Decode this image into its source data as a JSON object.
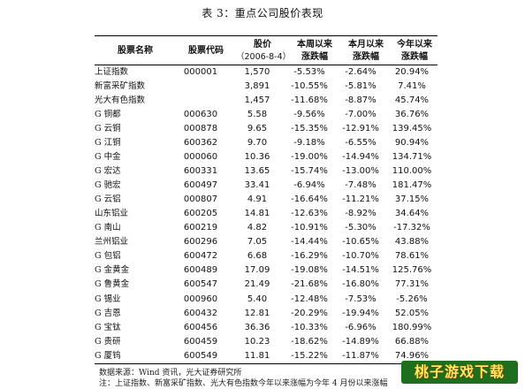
{
  "title": "表 3：重点公司股价表现",
  "headers": {
    "name": "股票名称",
    "code": "股票代码",
    "price_l1": "股价",
    "price_l2": "（2006-8-4）",
    "week_l1": "本周以来",
    "week_l2": "涨跌幅",
    "month_l1": "本月以来",
    "month_l2": "涨跌幅",
    "year_l1": "今年以来",
    "year_l2": "涨跌幅"
  },
  "rows": [
    {
      "name": "上证指数",
      "code": "000001",
      "price": "1,570",
      "week": "-5.53%",
      "month": "-2.64%",
      "year": "20.94%"
    },
    {
      "name": "新富采矿指数",
      "code": "",
      "price": "3,891",
      "week": "-10.55%",
      "month": "-5.81%",
      "year": "7.41%"
    },
    {
      "name": "光大有色指数",
      "code": "",
      "price": "1,457",
      "week": "-11.68%",
      "month": "-8.87%",
      "year": "45.74%"
    },
    {
      "name": "G 铜都",
      "code": "000630",
      "price": "5.58",
      "week": "-9.56%",
      "month": "-7.00%",
      "year": "36.76%"
    },
    {
      "name": "G 云铜",
      "code": "000878",
      "price": "9.65",
      "week": "-15.35%",
      "month": "-12.91%",
      "year": "139.45%"
    },
    {
      "name": "G 江铜",
      "code": "600362",
      "price": "9.70",
      "week": "-9.18%",
      "month": "-6.55%",
      "year": "90.94%"
    },
    {
      "name": "G 中金",
      "code": "000060",
      "price": "10.36",
      "week": "-19.00%",
      "month": "-14.94%",
      "year": "134.71%"
    },
    {
      "name": "G 宏达",
      "code": "600331",
      "price": "13.65",
      "week": "-15.74%",
      "month": "-13.00%",
      "year": "110.00%"
    },
    {
      "name": "G 驰宏",
      "code": "600497",
      "price": "33.41",
      "week": "-6.94%",
      "month": "-7.48%",
      "year": "181.47%"
    },
    {
      "name": "G 云铝",
      "code": "000807",
      "price": "4.91",
      "week": "-16.64%",
      "month": "-11.21%",
      "year": "37.15%"
    },
    {
      "name": "山东铝业",
      "code": "600205",
      "price": "14.81",
      "week": "-12.63%",
      "month": "-8.92%",
      "year": "34.64%"
    },
    {
      "name": "G 南山",
      "code": "600219",
      "price": "4.82",
      "week": "-10.91%",
      "month": "-5.30%",
      "year": "-17.32%"
    },
    {
      "name": "兰州铝业",
      "code": "600296",
      "price": "7.05",
      "week": "-14.44%",
      "month": "-10.65%",
      "year": "43.88%"
    },
    {
      "name": "G 包铝",
      "code": "600472",
      "price": "6.68",
      "week": "-16.29%",
      "month": "-10.70%",
      "year": "78.61%"
    },
    {
      "name": "G 金黄金",
      "code": "600489",
      "price": "17.09",
      "week": "-19.08%",
      "month": "-14.51%",
      "year": "125.76%"
    },
    {
      "name": "G 鲁黄金",
      "code": "600547",
      "price": "21.49",
      "week": "-21.68%",
      "month": "-16.80%",
      "year": "77.31%"
    },
    {
      "name": "G 锡业",
      "code": "000960",
      "price": "5.40",
      "week": "-12.48%",
      "month": "-7.53%",
      "year": "-5.26%"
    },
    {
      "name": "G 吉恩",
      "code": "600432",
      "price": "12.81",
      "week": "-20.29%",
      "month": "-19.94%",
      "year": "52.05%"
    },
    {
      "name": "G 宝钛",
      "code": "600456",
      "price": "36.36",
      "week": "-10.33%",
      "month": "-6.96%",
      "year": "180.99%"
    },
    {
      "name": "G 贵研",
      "code": "600459",
      "price": "10.23",
      "week": "-18.62%",
      "month": "-14.89%",
      "year": "66.88%"
    },
    {
      "name": "G 厦钨",
      "code": "600549",
      "price": "11.81",
      "week": "-15.22%",
      "month": "-11.87%",
      "year": "74.96%"
    }
  ],
  "source_note": "数据来源：Wind 资讯，光大证券研究所",
  "footnote": "注：上证指数、新富采矿指数、光大有色指数今年以来涨幅为今年 4 月份以来涨幅",
  "watermark": "桃子游戏下载"
}
